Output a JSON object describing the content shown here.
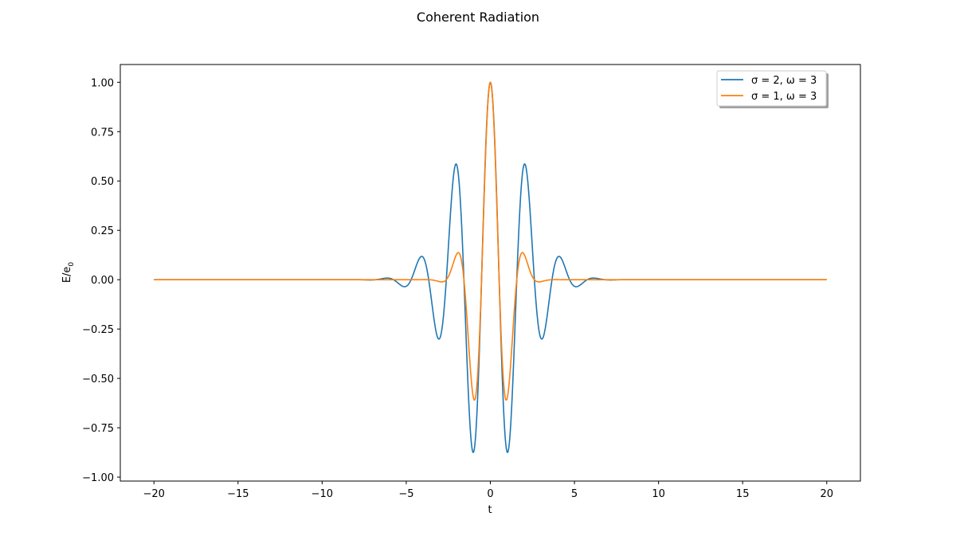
{
  "chart_data": {
    "type": "line",
    "title": "Coherent Radiation",
    "xlabel": "t",
    "ylabel_base": "E/e",
    "ylabel_sub": "0",
    "xlim": [
      -22,
      22
    ],
    "ylim": [
      -1.02,
      1.09
    ],
    "x_range": [
      -20,
      20
    ],
    "grid": false,
    "legend_position": "top-right",
    "x_ticks": [
      -20,
      -15,
      -10,
      -5,
      0,
      5,
      10,
      15,
      20
    ],
    "x_tick_labels": [
      "−20",
      "−15",
      "−10",
      "−5",
      "0",
      "5",
      "10",
      "15",
      "20"
    ],
    "y_ticks": [
      -1.0,
      -0.75,
      -0.5,
      -0.25,
      0.0,
      0.25,
      0.5,
      0.75,
      1.0
    ],
    "y_tick_labels": [
      "−1.00",
      "−0.75",
      "−0.50",
      "−0.25",
      "0.00",
      "0.25",
      "0.50",
      "0.75",
      "1.00"
    ],
    "model": "E(t) = exp(-t^2 / (2*sigma^2)) * cos(omega * t)",
    "series": [
      {
        "name": "σ = 2, ω = 3",
        "sigma": 2,
        "omega": 3,
        "color": "#1f77b4"
      },
      {
        "name": "σ = 1, ω = 3",
        "sigma": 1,
        "omega": 3,
        "color": "#ff7f0e"
      }
    ]
  }
}
